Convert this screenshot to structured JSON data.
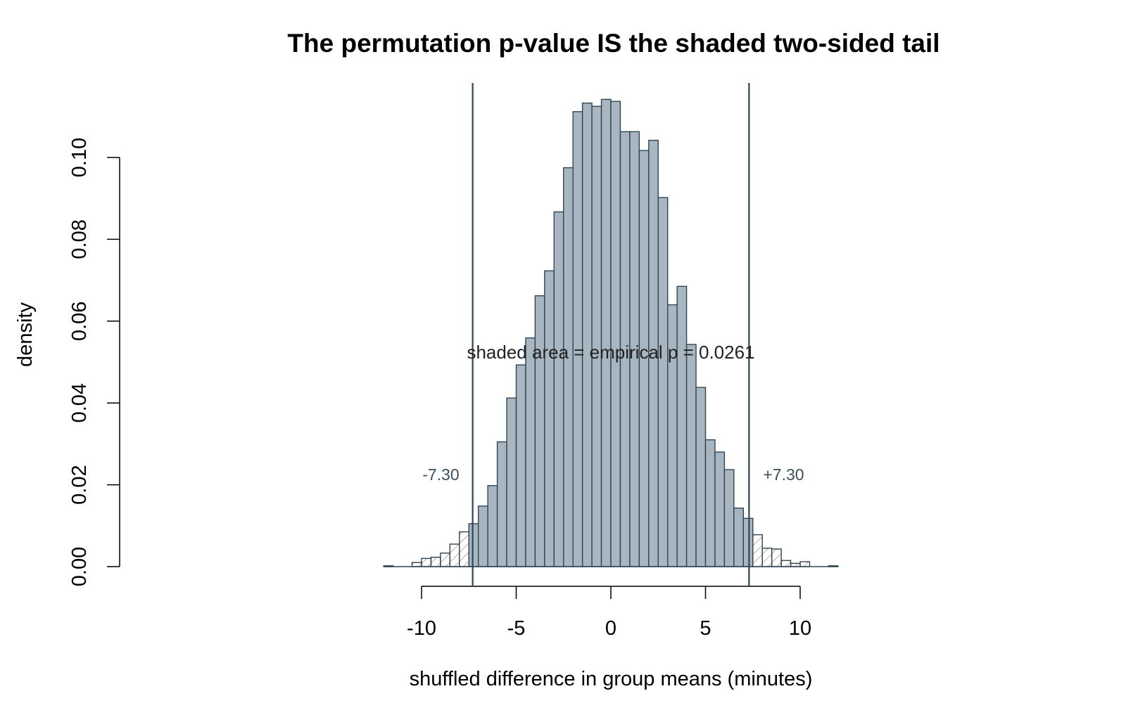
{
  "chart_data": {
    "type": "bar",
    "title": "The permutation p-value IS the shaded two-sided tail",
    "xlabel": "shuffled difference in group means (minutes)",
    "ylabel": "density",
    "xlim": [
      -12,
      12
    ],
    "ylim": [
      0,
      0.115
    ],
    "bin_width": 0.5,
    "x_ticks": [
      -10,
      -5,
      0,
      5,
      10
    ],
    "x_tick_labels": [
      "-10",
      "-5",
      "0",
      "5",
      "10"
    ],
    "y_ticks": [
      0,
      0.02,
      0.04,
      0.06,
      0.08,
      0.1
    ],
    "y_tick_labels": [
      "0.00",
      "0.02",
      "0.04",
      "0.06",
      "0.08",
      "0.10"
    ],
    "grid": false,
    "observed_threshold": 7.3,
    "threshold_labels": {
      "left": "-7.30",
      "right": "+7.30"
    },
    "annotation": "shaded area = empirical p = 0.0261",
    "series": [
      {
        "bin_left_edges": [
          -12,
          -11.5,
          -11,
          -10.5,
          -10,
          -9.5,
          -9,
          -8.5,
          -8,
          -7.5,
          -7,
          -6.5,
          -6,
          -5.5,
          -5,
          -4.5,
          -4,
          -3.5,
          -3,
          -2.5,
          -2,
          -1.5,
          -1,
          -0.5,
          0,
          0.5,
          1,
          1.5,
          2,
          2.5,
          3,
          3.5,
          4,
          4.5,
          5,
          5.5,
          6,
          6.5,
          7,
          7.5,
          8,
          8.5,
          9,
          9.5,
          10,
          10.5,
          11,
          11.5
        ],
        "density": [
          0.0002,
          0,
          0,
          0.001,
          0.002,
          0.0023,
          0.0033,
          0.0055,
          0.0085,
          0.0105,
          0.0148,
          0.0198,
          0.0305,
          0.0412,
          0.0493,
          0.0559,
          0.0662,
          0.0723,
          0.0867,
          0.0975,
          0.1112,
          0.1133,
          0.1125,
          0.1142,
          0.1137,
          0.1063,
          0.1063,
          0.1017,
          0.1042,
          0.0902,
          0.064,
          0.0685,
          0.0543,
          0.0438,
          0.031,
          0.028,
          0.0237,
          0.0143,
          0.0118,
          0.0078,
          0.0045,
          0.0043,
          0.0015,
          0.0008,
          0.0012,
          0,
          0,
          0.0002
        ]
      }
    ],
    "colors": {
      "bar_fill": "#a7b6c0",
      "bar_stroke": "#2f4553",
      "tail_hatch": "#c4ab9e",
      "threshold_line": "#2f4553",
      "threshold_text": "#3a4f5c"
    }
  }
}
